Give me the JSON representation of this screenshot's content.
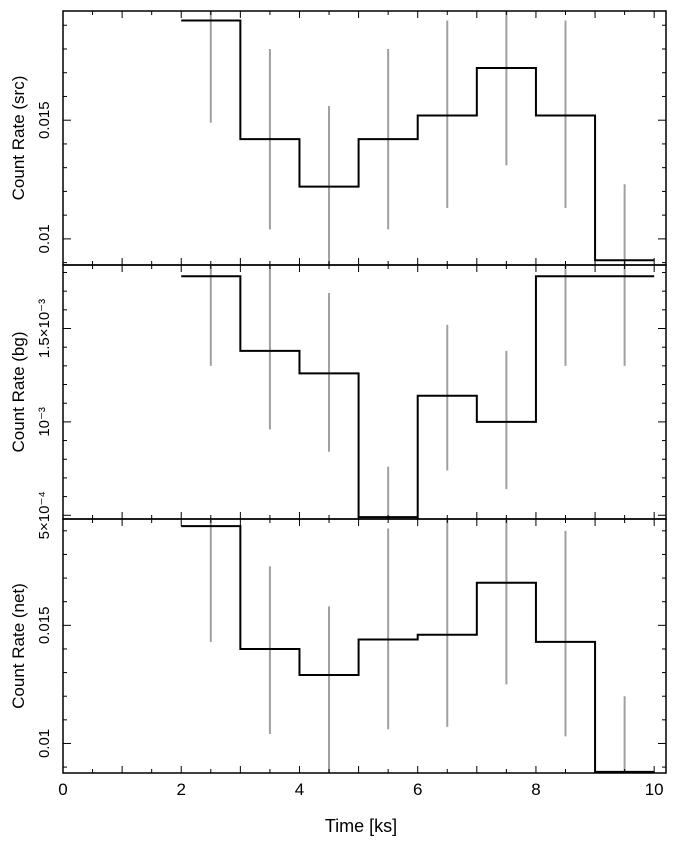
{
  "chart_data": [
    {
      "type": "line",
      "panel": "src",
      "ylabel": "Count Rate (src)",
      "xlim": [
        0,
        10.2
      ],
      "ylim": [
        0.0089,
        0.0196
      ],
      "yticks": [
        {
          "v": 0.01,
          "label": "0.01"
        },
        {
          "v": 0.015,
          "label": "0.015"
        }
      ],
      "minor_yticks": [
        0.009,
        0.011,
        0.012,
        0.013,
        0.014,
        0.016,
        0.017,
        0.018,
        0.019
      ],
      "bins": [
        {
          "x0": 2,
          "x1": 3,
          "y": 0.0192
        },
        {
          "x0": 3,
          "x1": 4,
          "y": 0.0142
        },
        {
          "x0": 4,
          "x1": 5,
          "y": 0.0122
        },
        {
          "x0": 5,
          "x1": 6,
          "y": 0.0142
        },
        {
          "x0": 6,
          "x1": 7,
          "y": 0.0152
        },
        {
          "x0": 7,
          "x1": 8,
          "y": 0.0172
        },
        {
          "x0": 8,
          "x1": 9,
          "y": 0.0152
        },
        {
          "x0": 9,
          "x1": 10,
          "y": 0.0091
        }
      ],
      "errors": [
        {
          "x": 2.5,
          "lo": 0.0149,
          "hi": 0.0196
        },
        {
          "x": 3.5,
          "lo": 0.0104,
          "hi": 0.018
        },
        {
          "x": 4.5,
          "lo": 0.0089,
          "hi": 0.0156
        },
        {
          "x": 5.5,
          "lo": 0.0104,
          "hi": 0.018
        },
        {
          "x": 6.5,
          "lo": 0.0113,
          "hi": 0.0192
        },
        {
          "x": 7.5,
          "lo": 0.0131,
          "hi": 0.0196
        },
        {
          "x": 8.5,
          "lo": 0.0113,
          "hi": 0.0192
        },
        {
          "x": 9.5,
          "lo": 0.0089,
          "hi": 0.0123
        }
      ]
    },
    {
      "type": "line",
      "panel": "bg",
      "ylabel": "Count Rate (bg)",
      "xlim": [
        0,
        10.2
      ],
      "ylim": [
        0.00048,
        0.00184
      ],
      "yticks": [
        {
          "v": 0.0005,
          "label": "5×10⁻⁴"
        },
        {
          "v": 0.001,
          "label": "10⁻³"
        },
        {
          "v": 0.0015,
          "label": "1.5×10⁻³"
        }
      ],
      "minor_yticks": [
        0.0006,
        0.0007,
        0.0008,
        0.0009,
        0.0011,
        0.0012,
        0.0013,
        0.0014,
        0.0016,
        0.0017,
        0.0018
      ],
      "bins": [
        {
          "x0": 2,
          "x1": 3,
          "y": 0.00178
        },
        {
          "x0": 3,
          "x1": 4,
          "y": 0.00138
        },
        {
          "x0": 4,
          "x1": 5,
          "y": 0.00126
        },
        {
          "x0": 5,
          "x1": 6,
          "y": 0.00049
        },
        {
          "x0": 6,
          "x1": 7,
          "y": 0.00114
        },
        {
          "x0": 7,
          "x1": 8,
          "y": 0.001
        },
        {
          "x0": 8,
          "x1": 10,
          "y": 0.00178
        }
      ],
      "errors": [
        {
          "x": 2.5,
          "lo": 0.0013,
          "hi": 0.00184
        },
        {
          "x": 3.5,
          "lo": 0.00096,
          "hi": 0.00184
        },
        {
          "x": 4.5,
          "lo": 0.00084,
          "hi": 0.00169
        },
        {
          "x": 5.5,
          "lo": 0.00048,
          "hi": 0.00076
        },
        {
          "x": 6.5,
          "lo": 0.00074,
          "hi": 0.00152
        },
        {
          "x": 7.5,
          "lo": 0.00064,
          "hi": 0.00138
        },
        {
          "x": 8.5,
          "lo": 0.0013,
          "hi": 0.00184
        },
        {
          "x": 9.5,
          "lo": 0.0013,
          "hi": 0.00184
        }
      ]
    },
    {
      "type": "line",
      "panel": "net",
      "ylabel": "Count Rate (net)",
      "xlabel": "Time [ks]",
      "xlim": [
        0,
        10.2
      ],
      "ylim": [
        0.00875,
        0.0195
      ],
      "xticks": [
        0,
        2,
        4,
        6,
        8,
        10
      ],
      "yticks": [
        {
          "v": 0.01,
          "label": "0.01"
        },
        {
          "v": 0.015,
          "label": "0.015"
        }
      ],
      "minor_yticks": [
        0.009,
        0.011,
        0.012,
        0.013,
        0.014,
        0.016,
        0.017,
        0.018,
        0.019
      ],
      "bins": [
        {
          "x0": 2,
          "x1": 3,
          "y": 0.0192
        },
        {
          "x0": 3,
          "x1": 4,
          "y": 0.014
        },
        {
          "x0": 4,
          "x1": 5,
          "y": 0.0129
        },
        {
          "x0": 5,
          "x1": 6,
          "y": 0.0144
        },
        {
          "x0": 6,
          "x1": 7,
          "y": 0.0146
        },
        {
          "x0": 7,
          "x1": 8,
          "y": 0.0168
        },
        {
          "x0": 8,
          "x1": 9,
          "y": 0.0143
        },
        {
          "x0": 9,
          "x1": 10,
          "y": 0.0088
        }
      ],
      "errors": [
        {
          "x": 2.5,
          "lo": 0.0143,
          "hi": 0.0195
        },
        {
          "x": 3.5,
          "lo": 0.0104,
          "hi": 0.0175
        },
        {
          "x": 4.5,
          "lo": 0.00875,
          "hi": 0.0158
        },
        {
          "x": 5.5,
          "lo": 0.0106,
          "hi": 0.0191
        },
        {
          "x": 6.5,
          "lo": 0.0107,
          "hi": 0.0195
        },
        {
          "x": 7.5,
          "lo": 0.0125,
          "hi": 0.0195
        },
        {
          "x": 8.5,
          "lo": 0.0103,
          "hi": 0.019
        },
        {
          "x": 9.5,
          "lo": 0.00875,
          "hi": 0.012
        }
      ]
    }
  ]
}
